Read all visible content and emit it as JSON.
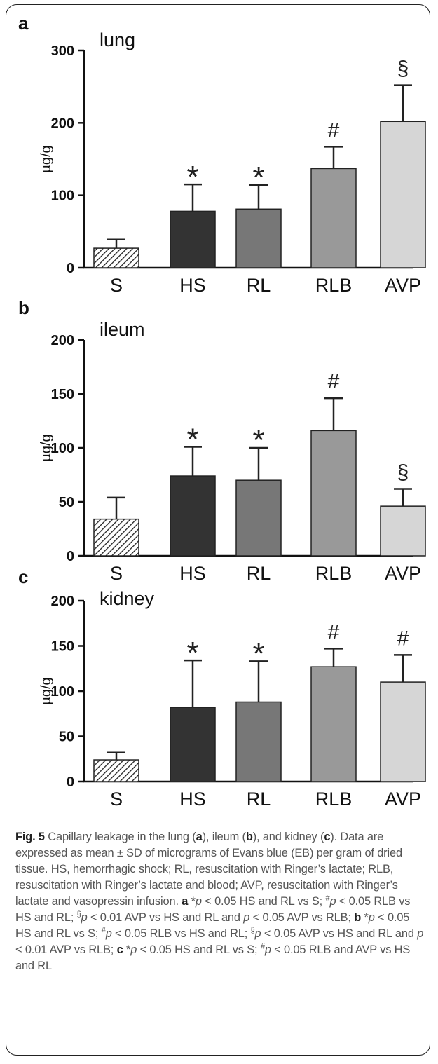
{
  "chart_data": [
    {
      "type": "bar",
      "panel": "a",
      "title": "lung",
      "ylabel": "µg/g",
      "ylim": [
        0,
        300
      ],
      "yticks": [
        "0",
        "100",
        "200",
        "300"
      ],
      "categories": [
        "S",
        "HS",
        "RL",
        "RLB",
        "AVP"
      ],
      "values": [
        27,
        78,
        81,
        137,
        202
      ],
      "errors": [
        12,
        37,
        33,
        30,
        50
      ],
      "markers": [
        "",
        "*",
        "*",
        "#",
        "§"
      ],
      "grid": false
    },
    {
      "type": "bar",
      "panel": "b",
      "title": "ileum",
      "ylabel": "µg/g",
      "ylim": [
        0,
        200
      ],
      "yticks": [
        "0",
        "50",
        "100",
        "150",
        "200"
      ],
      "categories": [
        "S",
        "HS",
        "RL",
        "RLB",
        "AVP"
      ],
      "values": [
        34,
        74,
        70,
        116,
        46
      ],
      "errors": [
        20,
        27,
        30,
        30,
        16
      ],
      "markers": [
        "",
        "*",
        "*",
        "#",
        "§"
      ],
      "grid": false
    },
    {
      "type": "bar",
      "panel": "c",
      "title": "kidney",
      "ylabel": "µg/g",
      "ylim": [
        0,
        200
      ],
      "yticks": [
        "0",
        "50",
        "100",
        "150",
        "200"
      ],
      "categories": [
        "S",
        "HS",
        "RL",
        "RLB",
        "AVP"
      ],
      "values": [
        24,
        82,
        88,
        127,
        110
      ],
      "errors": [
        8,
        52,
        45,
        20,
        30
      ],
      "markers": [
        "",
        "*",
        "*",
        "#",
        "#"
      ],
      "grid": false
    }
  ],
  "colors": {
    "S": "hatched",
    "HS": "#333333",
    "RL": "#777777",
    "RLB": "#999999",
    "AVP": "#d6d6d6"
  },
  "caption": {
    "fig_label": "Fig. 5",
    "s1": " Capillary leakage in the lung (",
    "a1": "a",
    "s2": "), ileum (",
    "b1": "b",
    "s3": "), and kidney (",
    "c1": "c",
    "s4": "). Data are expressed as mean ± SD of micrograms of Evans blue (EB) per gram of dried tissue. HS, hemorrhagic shock; RL, resuscitation with Ringer’s lactate; RLB, resuscitation with Ringer’s lactate and blood; AVP, resuscitation with Ringer’s lactate and vasopressin infusion. ",
    "a2": "a",
    "s5": " *",
    "p1": "p",
    "s6": " < 0.05 HS and RL vs S; ",
    "sup1": "#",
    "p2": "p",
    "s7": " < 0.05 RLB vs HS and RL; ",
    "sup2": "§",
    "p3": "p",
    "s8": " < 0.01 AVP vs HS and RL and ",
    "p4": "p",
    "s9": " < 0.05 AVP vs RLB; ",
    "b2": "b",
    "s10": " *",
    "p5": "p",
    "s11": " < 0.05 HS and RL vs S; ",
    "sup3": "#",
    "p6": "p",
    "s12": " < 0.05 RLB vs HS and RL; ",
    "sup4": "§",
    "p7": "p",
    "s13": " < 0.05 AVP vs HS and RL and ",
    "p8": "p",
    "s14": " < 0.01 AVP vs RLB; ",
    "c2": "c",
    "s15": " *",
    "p9": "p",
    "s16": " < 0.05 HS and RL vs S; ",
    "sup5": "#",
    "p10": "p",
    "s17": " < 0.05 RLB and AVP vs HS and RL"
  }
}
